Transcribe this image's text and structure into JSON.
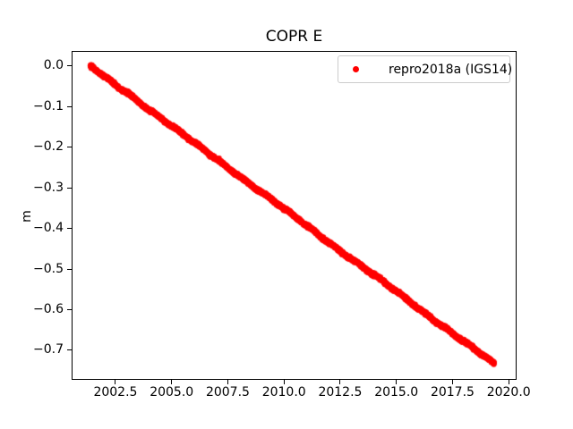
{
  "figure": {
    "background": "#ffffff",
    "text_color": "#000000",
    "spine_color": "#000000",
    "legend_border_color": "#cccccc"
  },
  "chart_data": {
    "type": "scatter",
    "title": "COPR E",
    "xlabel": "",
    "ylabel": "m",
    "grid": false,
    "xlim": [
      2000.55,
      2020.35
    ],
    "ylim": [
      -0.7731,
      0.0374
    ],
    "x_ticks": {
      "values": [
        2002.5,
        2005.0,
        2007.5,
        2010.0,
        2012.5,
        2015.0,
        2017.5,
        2020.0
      ],
      "labels": [
        "2002.5",
        "2005.0",
        "2007.5",
        "2010.0",
        "2012.5",
        "2015.0",
        "2017.5",
        "2020.0"
      ]
    },
    "y_ticks": {
      "values": [
        0.0,
        -0.1,
        -0.2,
        -0.3,
        -0.4,
        -0.5,
        -0.6,
        -0.7
      ],
      "labels": [
        "0.0",
        "−0.1",
        "−0.2",
        "−0.3",
        "−0.4",
        "−0.5",
        "−0.6",
        "−0.7"
      ]
    },
    "legend": {
      "location": "upper right",
      "entries": [
        {
          "label": "repro2018a (IGS14)",
          "marker": "dot",
          "color": "#ff0000"
        }
      ]
    },
    "series": [
      {
        "name": "repro2018a (IGS14)",
        "color": "#ff0000",
        "marker": "dot",
        "marker_diameter_px": 6,
        "x_start": 2001.38,
        "x_end": 2019.35,
        "y_start": 0.0,
        "y_end": -0.735,
        "slope_m_per_yr": -0.0409,
        "anchors_x": [
          2001.38,
          2002.0,
          2002.6,
          2003.0,
          2003.3,
          2004.0,
          2005.0,
          2006.0,
          2007.0,
          2008.0,
          2009.0,
          2010.0,
          2011.0,
          2012.0,
          2013.0,
          2014.0,
          2015.0,
          2016.0,
          2017.0,
          2018.0,
          2019.0,
          2019.35
        ],
        "anchors_y": [
          0.0,
          -0.026,
          -0.05,
          -0.064,
          -0.077,
          -0.107,
          -0.148,
          -0.189,
          -0.229,
          -0.27,
          -0.311,
          -0.352,
          -0.393,
          -0.434,
          -0.475,
          -0.515,
          -0.556,
          -0.597,
          -0.638,
          -0.679,
          -0.719,
          -0.735
        ],
        "point_count": 4200,
        "noise_std_m": 0.0018
      }
    ]
  }
}
